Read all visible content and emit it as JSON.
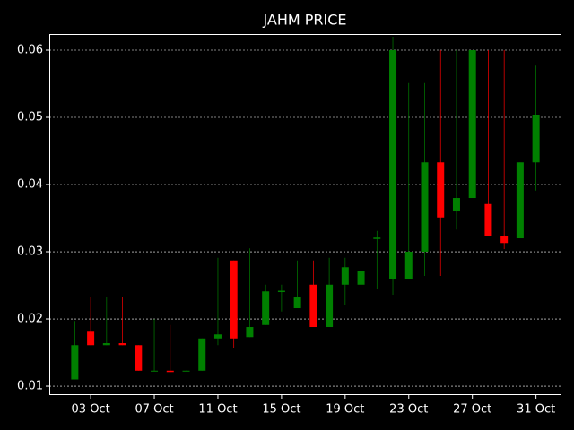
{
  "chart_data": {
    "type": "candlestick",
    "title": "JAHM PRICE",
    "x": [
      2,
      3,
      4,
      5,
      6,
      7,
      8,
      9,
      10,
      11,
      12,
      13,
      14,
      15,
      16,
      17,
      18,
      19,
      20,
      21,
      22,
      23,
      24,
      25,
      26,
      27,
      28,
      29,
      30,
      31
    ],
    "open": [
      0.011,
      0.0181,
      0.0161,
      0.0164,
      0.0161,
      0.0122,
      0.0123,
      0.0122,
      0.0123,
      0.0171,
      0.0287,
      0.0173,
      0.0191,
      0.024,
      0.0216,
      0.0251,
      0.0188,
      0.0251,
      0.0251,
      0.0319,
      0.026,
      0.026,
      0.03,
      0.0433,
      0.036,
      0.038,
      0.0371,
      0.0324,
      0.032,
      0.0433
    ],
    "high": [
      0.0197,
      0.0233,
      0.0233,
      0.0233,
      0.0161,
      0.02,
      0.0191,
      0.0123,
      0.0171,
      0.0291,
      0.0287,
      0.0305,
      0.0251,
      0.0251,
      0.0287,
      0.0287,
      0.0291,
      0.0291,
      0.0333,
      0.0331,
      0.062,
      0.0551,
      0.0551,
      0.06,
      0.06,
      0.06,
      0.06,
      0.06,
      0.0433,
      0.0577
    ],
    "low": [
      0.011,
      0.0161,
      0.0161,
      0.0161,
      0.0123,
      0.0122,
      0.0121,
      0.0122,
      0.0123,
      0.0161,
      0.0157,
      0.0173,
      0.0191,
      0.0211,
      0.0216,
      0.0188,
      0.0188,
      0.0221,
      0.0221,
      0.0244,
      0.0236,
      0.026,
      0.0264,
      0.0264,
      0.0333,
      0.038,
      0.0324,
      0.0304,
      0.032,
      0.0391
    ],
    "close": [
      0.0161,
      0.0161,
      0.0164,
      0.0161,
      0.0123,
      0.0123,
      0.0121,
      0.0123,
      0.0171,
      0.0177,
      0.0171,
      0.0188,
      0.0241,
      0.0242,
      0.0232,
      0.0188,
      0.0251,
      0.0277,
      0.0271,
      0.0321,
      0.06,
      0.03,
      0.0433,
      0.0351,
      0.038,
      0.06,
      0.0324,
      0.0313,
      0.0433,
      0.0504
    ],
    "up_color": "#008000",
    "down_color": "#ff0000",
    "xlim": [
      0.4,
      32.6
    ],
    "xticks": [
      {
        "value": 3,
        "label": "03 Oct"
      },
      {
        "value": 7,
        "label": "07 Oct"
      },
      {
        "value": 11,
        "label": "11 Oct"
      },
      {
        "value": 15,
        "label": "15 Oct"
      },
      {
        "value": 19,
        "label": "19 Oct"
      },
      {
        "value": 23,
        "label": "23 Oct"
      },
      {
        "value": 27,
        "label": "27 Oct"
      },
      {
        "value": 31,
        "label": "31 Oct"
      }
    ],
    "ylim": [
      0.00867,
      0.0624
    ],
    "yticks": [
      0.01,
      0.02,
      0.03,
      0.04,
      0.05,
      0.06
    ],
    "grid": true
  }
}
